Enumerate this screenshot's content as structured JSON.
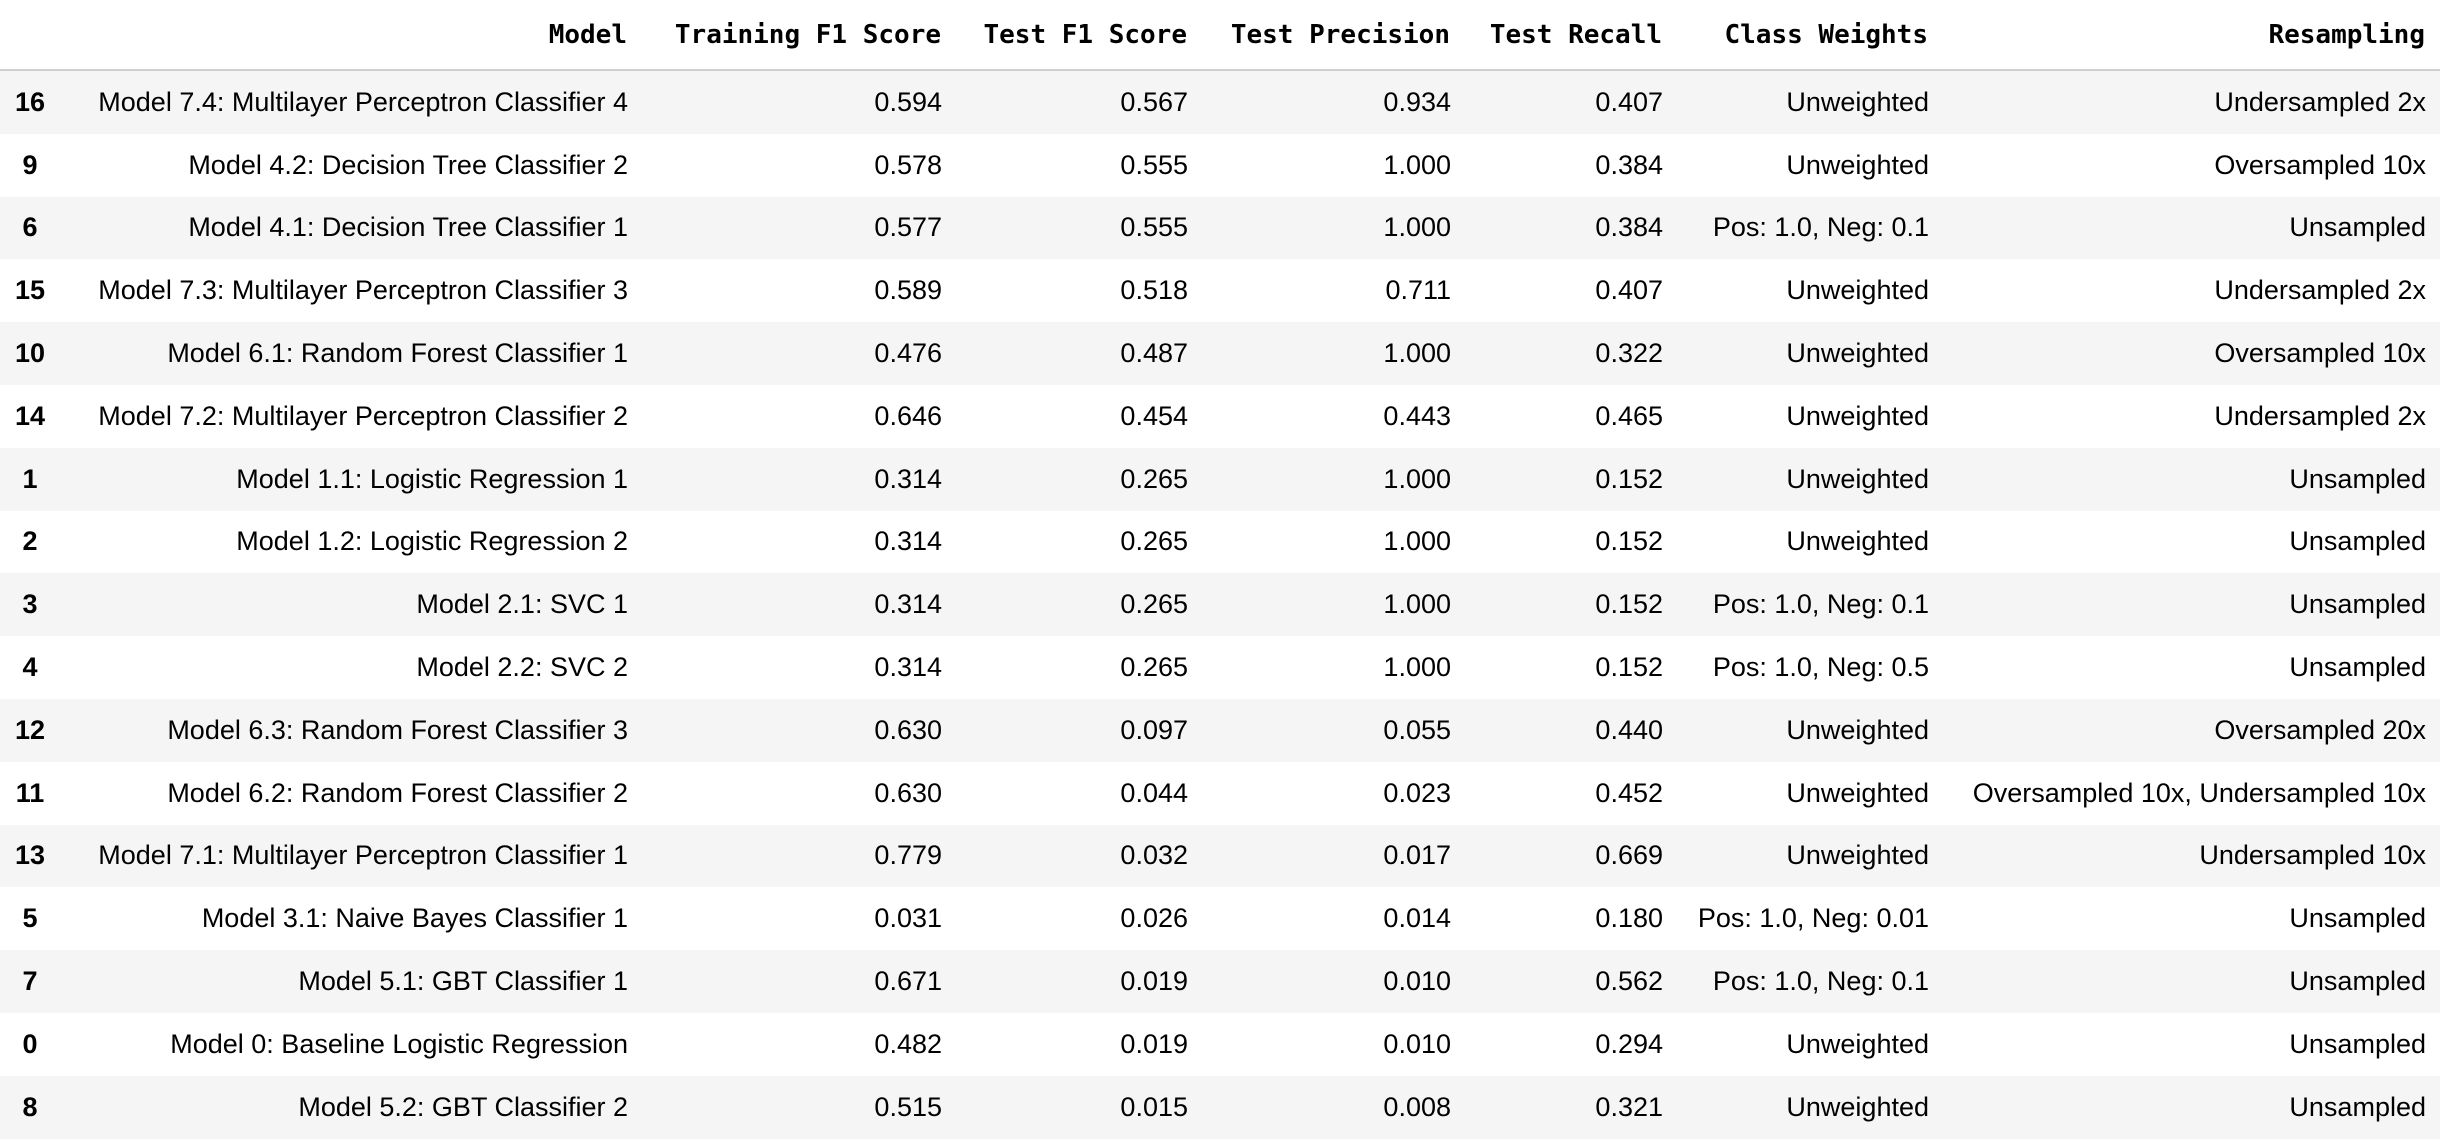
{
  "table": {
    "columns": [
      "",
      "Model",
      "Training F1 Score",
      "Test F1 Score",
      "Test Precision",
      "Test Recall",
      "Class Weights",
      "Resampling"
    ],
    "rows": [
      [
        "16",
        "Model 7.4: Multilayer Perceptron Classifier 4",
        "0.594",
        "0.567",
        "0.934",
        "0.407",
        "Unweighted",
        "Undersampled 2x"
      ],
      [
        "9",
        "Model 4.2: Decision Tree Classifier 2",
        "0.578",
        "0.555",
        "1.000",
        "0.384",
        "Unweighted",
        "Oversampled 10x"
      ],
      [
        "6",
        "Model 4.1: Decision Tree Classifier 1",
        "0.577",
        "0.555",
        "1.000",
        "0.384",
        "Pos: 1.0, Neg: 0.1",
        "Unsampled"
      ],
      [
        "15",
        "Model 7.3: Multilayer Perceptron Classifier 3",
        "0.589",
        "0.518",
        "0.711",
        "0.407",
        "Unweighted",
        "Undersampled 2x"
      ],
      [
        "10",
        "Model 6.1: Random Forest Classifier 1",
        "0.476",
        "0.487",
        "1.000",
        "0.322",
        "Unweighted",
        "Oversampled 10x"
      ],
      [
        "14",
        "Model 7.2: Multilayer Perceptron Classifier 2",
        "0.646",
        "0.454",
        "0.443",
        "0.465",
        "Unweighted",
        "Undersampled 2x"
      ],
      [
        "1",
        "Model 1.1: Logistic Regression 1",
        "0.314",
        "0.265",
        "1.000",
        "0.152",
        "Unweighted",
        "Unsampled"
      ],
      [
        "2",
        "Model 1.2: Logistic Regression 2",
        "0.314",
        "0.265",
        "1.000",
        "0.152",
        "Unweighted",
        "Unsampled"
      ],
      [
        "3",
        "Model 2.1: SVC 1",
        "0.314",
        "0.265",
        "1.000",
        "0.152",
        "Pos: 1.0, Neg: 0.1",
        "Unsampled"
      ],
      [
        "4",
        "Model 2.2: SVC 2",
        "0.314",
        "0.265",
        "1.000",
        "0.152",
        "Pos: 1.0, Neg: 0.5",
        "Unsampled"
      ],
      [
        "12",
        "Model 6.3: Random Forest Classifier 3",
        "0.630",
        "0.097",
        "0.055",
        "0.440",
        "Unweighted",
        "Oversampled 20x"
      ],
      [
        "11",
        "Model 6.2: Random Forest Classifier 2",
        "0.630",
        "0.044",
        "0.023",
        "0.452",
        "Unweighted",
        "Oversampled 10x, Undersampled 10x"
      ],
      [
        "13",
        "Model 7.1: Multilayer Perceptron Classifier 1",
        "0.779",
        "0.032",
        "0.017",
        "0.669",
        "Unweighted",
        "Undersampled 10x"
      ],
      [
        "5",
        "Model 3.1: Naive Bayes Classifier 1",
        "0.031",
        "0.026",
        "0.014",
        "0.180",
        "Pos: 1.0, Neg: 0.01",
        "Unsampled"
      ],
      [
        "7",
        "Model 5.1: GBT Classifier 1",
        "0.671",
        "0.019",
        "0.010",
        "0.562",
        "Pos: 1.0, Neg: 0.1",
        "Unsampled"
      ],
      [
        "0",
        "Model 0: Baseline Logistic Regression",
        "0.482",
        "0.019",
        "0.010",
        "0.294",
        "Unweighted",
        "Unsampled"
      ],
      [
        "8",
        "Model 5.2: GBT Classifier 2",
        "0.515",
        "0.015",
        "0.008",
        "0.321",
        "Unweighted",
        "Unsampled"
      ]
    ]
  },
  "colors": {
    "striped_row": "#f5f5f5",
    "header_rule": "#cfcfcf",
    "text": "#000000"
  }
}
